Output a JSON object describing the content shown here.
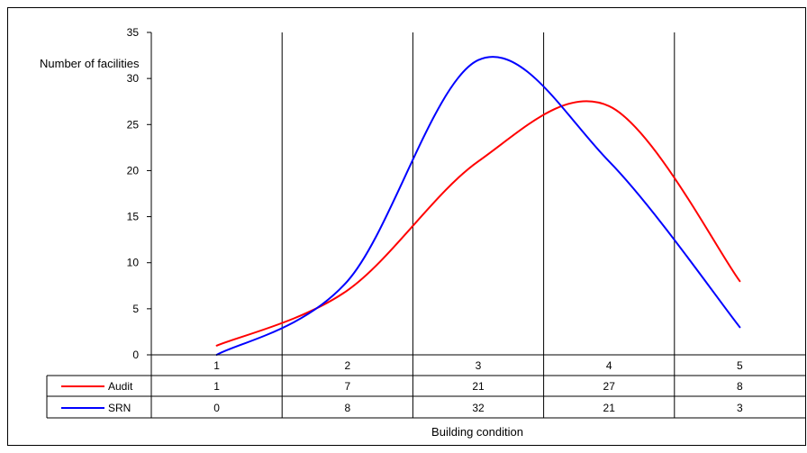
{
  "chart_data": {
    "type": "line",
    "ylabel": "Number of facilities",
    "xlabel": "Building condition",
    "ylim": [
      0,
      35
    ],
    "yticks": [
      0,
      5,
      10,
      15,
      20,
      25,
      30,
      35
    ],
    "categories": [
      "1",
      "2",
      "3",
      "4",
      "5"
    ],
    "smoothed": true,
    "grid": "vertical category separators",
    "legend": "data table below plot",
    "series": [
      {
        "name": "Audit",
        "color": "#ff0000",
        "values": [
          1,
          7,
          21,
          27,
          8
        ]
      },
      {
        "name": "SRN",
        "color": "#0000ff",
        "values": [
          0,
          8,
          32,
          21,
          3
        ]
      }
    ]
  }
}
